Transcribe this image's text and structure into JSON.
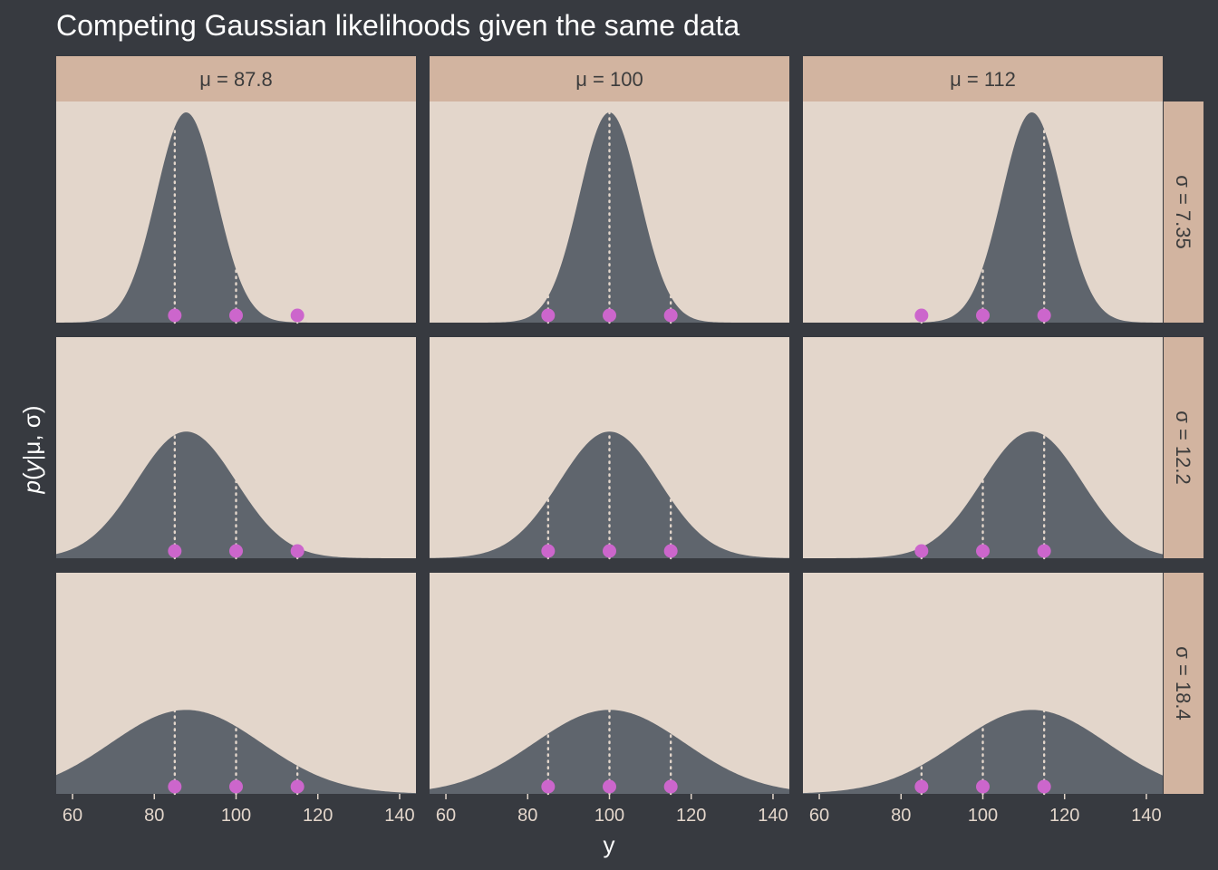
{
  "chart_data": {
    "type": "area",
    "title": "Competing Gaussian likelihoods given the same data",
    "xlabel": "y",
    "ylabel": {
      "p": "p",
      "open": "(",
      "y": "y",
      "rest": "|μ, σ)"
    },
    "xlim": [
      56,
      144
    ],
    "x_ticks": [
      60,
      80,
      100,
      120,
      140
    ],
    "facet_cols": [
      {
        "label": "μ = 87.8",
        "mu": 87.8
      },
      {
        "label": "μ = 100",
        "mu": 100
      },
      {
        "label": "μ = 112",
        "mu": 112
      }
    ],
    "facet_rows": [
      {
        "label": "σ = 7.35",
        "sigma": 7.35
      },
      {
        "label": "σ = 12.2",
        "sigma": 12.2
      },
      {
        "label": "σ = 18.4",
        "sigma": 18.4
      }
    ],
    "observed_y": [
      85,
      100,
      115
    ],
    "colors": {
      "background": "#373a40",
      "panel": "#e3d6cb",
      "strip": "#d2b4a0",
      "density": "#5f656d",
      "points": "#cc66cc",
      "segments": "#e3d6cb"
    }
  }
}
